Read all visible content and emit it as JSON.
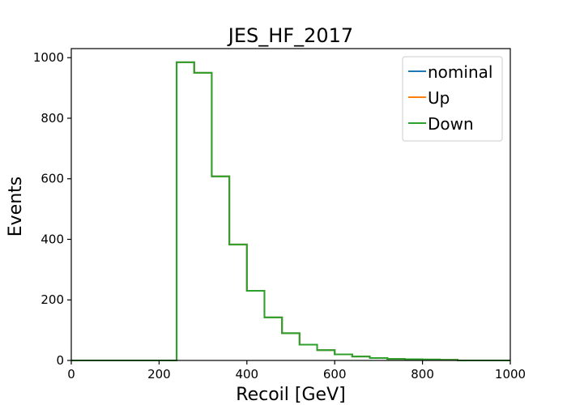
{
  "chart_data": {
    "type": "line",
    "title": "JES_HF_2017",
    "xlabel": "Recoil [GeV]",
    "ylabel": "Events",
    "xlim": [
      0,
      1000
    ],
    "ylim": [
      0,
      1030
    ],
    "xticks": [
      0,
      200,
      400,
      600,
      800,
      1000
    ],
    "yticks": [
      0,
      200,
      400,
      600,
      800,
      1000
    ],
    "grid": false,
    "legend_position": "top-right",
    "bin_edges": [
      0,
      40,
      80,
      120,
      160,
      200,
      240,
      280,
      320,
      360,
      400,
      440,
      480,
      520,
      560,
      600,
      640,
      680,
      720,
      760,
      800,
      840,
      880,
      920,
      960,
      1000
    ],
    "series": [
      {
        "name": "nominal",
        "color": "#1f77b4",
        "values": [
          0,
          0,
          0,
          0,
          0,
          0,
          985,
          950,
          608,
          383,
          230,
          142,
          90,
          52,
          34,
          20,
          13,
          8,
          5,
          4,
          3,
          2,
          0,
          0,
          0
        ]
      },
      {
        "name": "Up",
        "color": "#ff7f0e",
        "values": [
          0,
          0,
          0,
          0,
          0,
          0,
          985,
          950,
          608,
          383,
          230,
          142,
          90,
          52,
          34,
          20,
          13,
          8,
          5,
          4,
          3,
          2,
          0,
          0,
          0
        ]
      },
      {
        "name": "Down",
        "color": "#2ca02c",
        "values": [
          0,
          0,
          0,
          0,
          0,
          0,
          985,
          950,
          608,
          383,
          230,
          142,
          90,
          52,
          34,
          20,
          13,
          8,
          5,
          4,
          3,
          2,
          0,
          0,
          0
        ]
      }
    ]
  }
}
